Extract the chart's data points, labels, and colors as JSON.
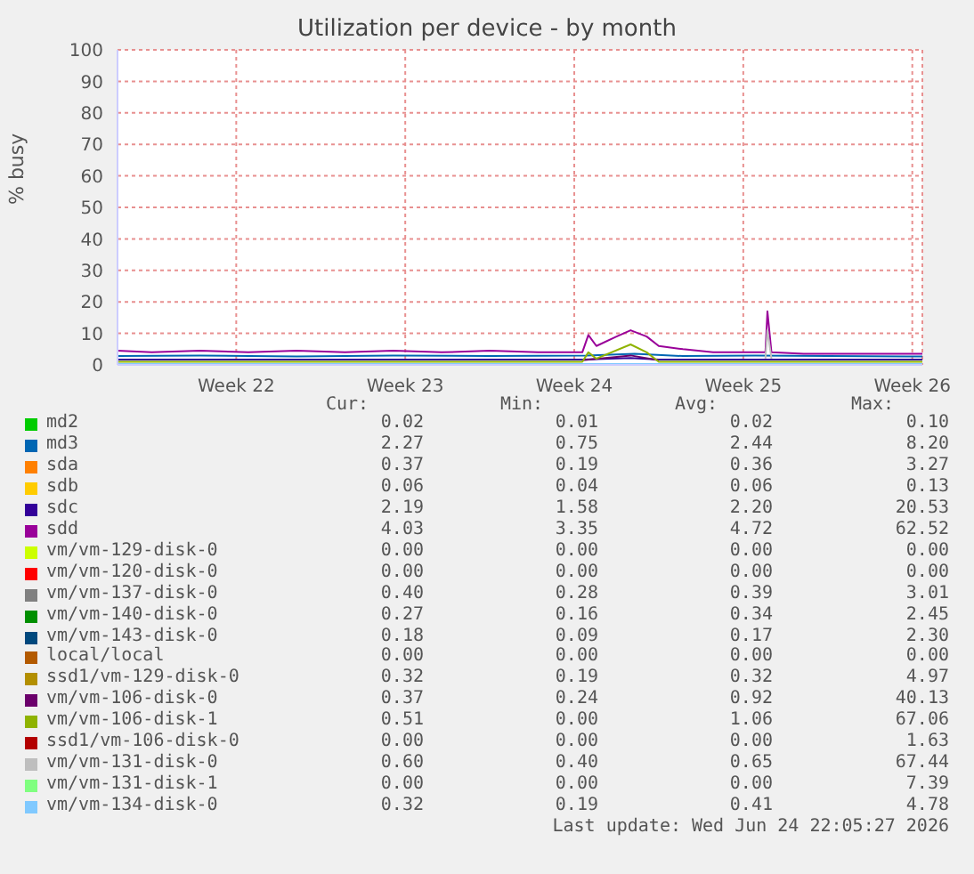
{
  "chart_data": {
    "type": "line",
    "title": "Utilization per device - by month",
    "ylabel": "% busy",
    "xlim": [
      "2026-05-22T14:00",
      "2026-06-24T22:00"
    ],
    "xticks": [
      {
        "value": "2026-05-27T12:00",
        "label": "Week 22"
      },
      {
        "value": "2026-06-03T12:00",
        "label": "Week 23"
      },
      {
        "value": "2026-06-10T12:00",
        "label": "Week 24"
      },
      {
        "value": "2026-06-17T12:00",
        "label": "Week 25"
      },
      {
        "value": "2026-06-24T12:00",
        "label": "Week 26"
      }
    ],
    "ylim": [
      0,
      100
    ],
    "yticks": [
      0,
      10,
      20,
      30,
      40,
      50,
      60,
      70,
      80,
      90,
      100
    ],
    "grid": true,
    "legend": "bottom",
    "marker": "none",
    "line_style": "solid",
    "series": [
      {
        "name": "md2",
        "color": "#00cc00"
      },
      {
        "name": "md3",
        "color": "#0066b3",
        "x": [
          "2026-05-22T14:00",
          "2026-05-26",
          "2026-05-30",
          "2026-06-03",
          "2026-06-07",
          "2026-06-11",
          "2026-06-13",
          "2026-06-15",
          "2026-06-18",
          "2026-06-21",
          "2026-06-24T22:00"
        ],
        "values": [
          2.8,
          3,
          2.7,
          3,
          2.8,
          3,
          3.5,
          2.8,
          3,
          2.8,
          2.7
        ]
      },
      {
        "name": "sda",
        "color": "#ff8000"
      },
      {
        "name": "sdb",
        "color": "#ffcc00"
      },
      {
        "name": "sdc",
        "color": "#330099",
        "x": [
          "2026-05-22T14:00",
          "2026-06-10T20:00",
          "2026-06-12T20:00",
          "2026-06-14",
          "2026-06-24T22:00"
        ],
        "values": [
          1.7,
          1.7,
          2.2,
          1.7,
          1.7
        ]
      },
      {
        "name": "sdd",
        "color": "#990099",
        "x": [
          "2026-05-22T14:00",
          "2026-05-24",
          "2026-05-26",
          "2026-05-28",
          "2026-05-30",
          "2026-06-01",
          "2026-06-03",
          "2026-06-05",
          "2026-06-07",
          "2026-06-09",
          "2026-06-10T20:00",
          "2026-06-11T02:00",
          "2026-06-11T10:00",
          "2026-06-12T06:00",
          "2026-06-12T20:00",
          "2026-06-13T12:00",
          "2026-06-14",
          "2026-06-15",
          "2026-06-16T06:00",
          "2026-06-18T10:00",
          "2026-06-18T12:00",
          "2026-06-18T16:00",
          "2026-06-20",
          "2026-06-24T22:00"
        ],
        "values": [
          4.5,
          4,
          4.5,
          4,
          4.5,
          4,
          4.5,
          4,
          4.5,
          4,
          4,
          9.5,
          6,
          9,
          11,
          9,
          6,
          5,
          4,
          4,
          17,
          4,
          3.5,
          3.5
        ]
      },
      {
        "name": "vm/vm-129-disk-0",
        "color": "#ccff00"
      },
      {
        "name": "vm/vm-120-disk-0",
        "color": "#ff0000"
      },
      {
        "name": "vm/vm-137-disk-0",
        "color": "#808080"
      },
      {
        "name": "vm/vm-140-disk-0",
        "color": "#008f00"
      },
      {
        "name": "vm/vm-143-disk-0",
        "color": "#00487d"
      },
      {
        "name": "local/local",
        "color": "#b35a00"
      },
      {
        "name": "ssd1/vm-129-disk-0",
        "color": "#b38f00"
      },
      {
        "name": "vm/vm-106-disk-0",
        "color": "#6b006b",
        "x": [
          "2026-06-10T20:00",
          "2026-06-12T20:00",
          "2026-06-14"
        ],
        "values": [
          1.5,
          3,
          1.5
        ]
      },
      {
        "name": "vm/vm-106-disk-1",
        "color": "#8fb300",
        "x": [
          "2026-05-22T14:00",
          "2026-06-10T20:00",
          "2026-06-11T02:00",
          "2026-06-11T10:00",
          "2026-06-12T20:00",
          "2026-06-13T12:00",
          "2026-06-14",
          "2026-06-15",
          "2026-06-24T22:00"
        ],
        "values": [
          1,
          1,
          4,
          2,
          6.5,
          4,
          1,
          1,
          1
        ]
      },
      {
        "name": "ssd1/vm-106-disk-0",
        "color": "#b30000"
      },
      {
        "name": "vm/vm-131-disk-0",
        "color": "#bebebe",
        "x": [
          "2026-06-18T10:00",
          "2026-06-18T12:00",
          "2026-06-18T16:00"
        ],
        "values": [
          2,
          11,
          2
        ]
      },
      {
        "name": "vm/vm-131-disk-1",
        "color": "#80ff80"
      },
      {
        "name": "vm/vm-134-disk-0",
        "color": "#80c9ff",
        "x": [
          "2026-05-22T14:00",
          "2026-06-24T22:00"
        ],
        "values": [
          0.3,
          0.3
        ]
      }
    ],
    "annotations": [
      "Cur: Min: Avg: Max:",
      "0.02 0.01 0.02 0.10",
      "2.27 0.75 2.44 8.20",
      "0.37 0.19 0.36 3.27",
      "0.06 0.04 0.06 0.13",
      "2.19 1.58 2.20 20.53",
      "4.03 3.35 4.72 62.52",
      "0.00 0.00 0.00 0.00",
      "0.00 0.00 0.00 0.00",
      "0.40 0.28 0.39 3.01",
      "0.27 0.16 0.34 2.45",
      "0.18 0.09 0.17 2.30",
      "0.00 0.00 0.00 0.00",
      "0.32 0.19 0.32 4.97",
      "0.37 0.24 0.92 40.13",
      "0.51 0.00 1.06 67.06",
      "0.00 0.00 0.00 1.63",
      "0.60 0.40 0.65 67.44",
      "0.00 0.00 0.00 7.39",
      "0.32 0.19 0.41 4.78",
      "Last update: Wed Jun 24 22:05:27 2026"
    ]
  }
}
